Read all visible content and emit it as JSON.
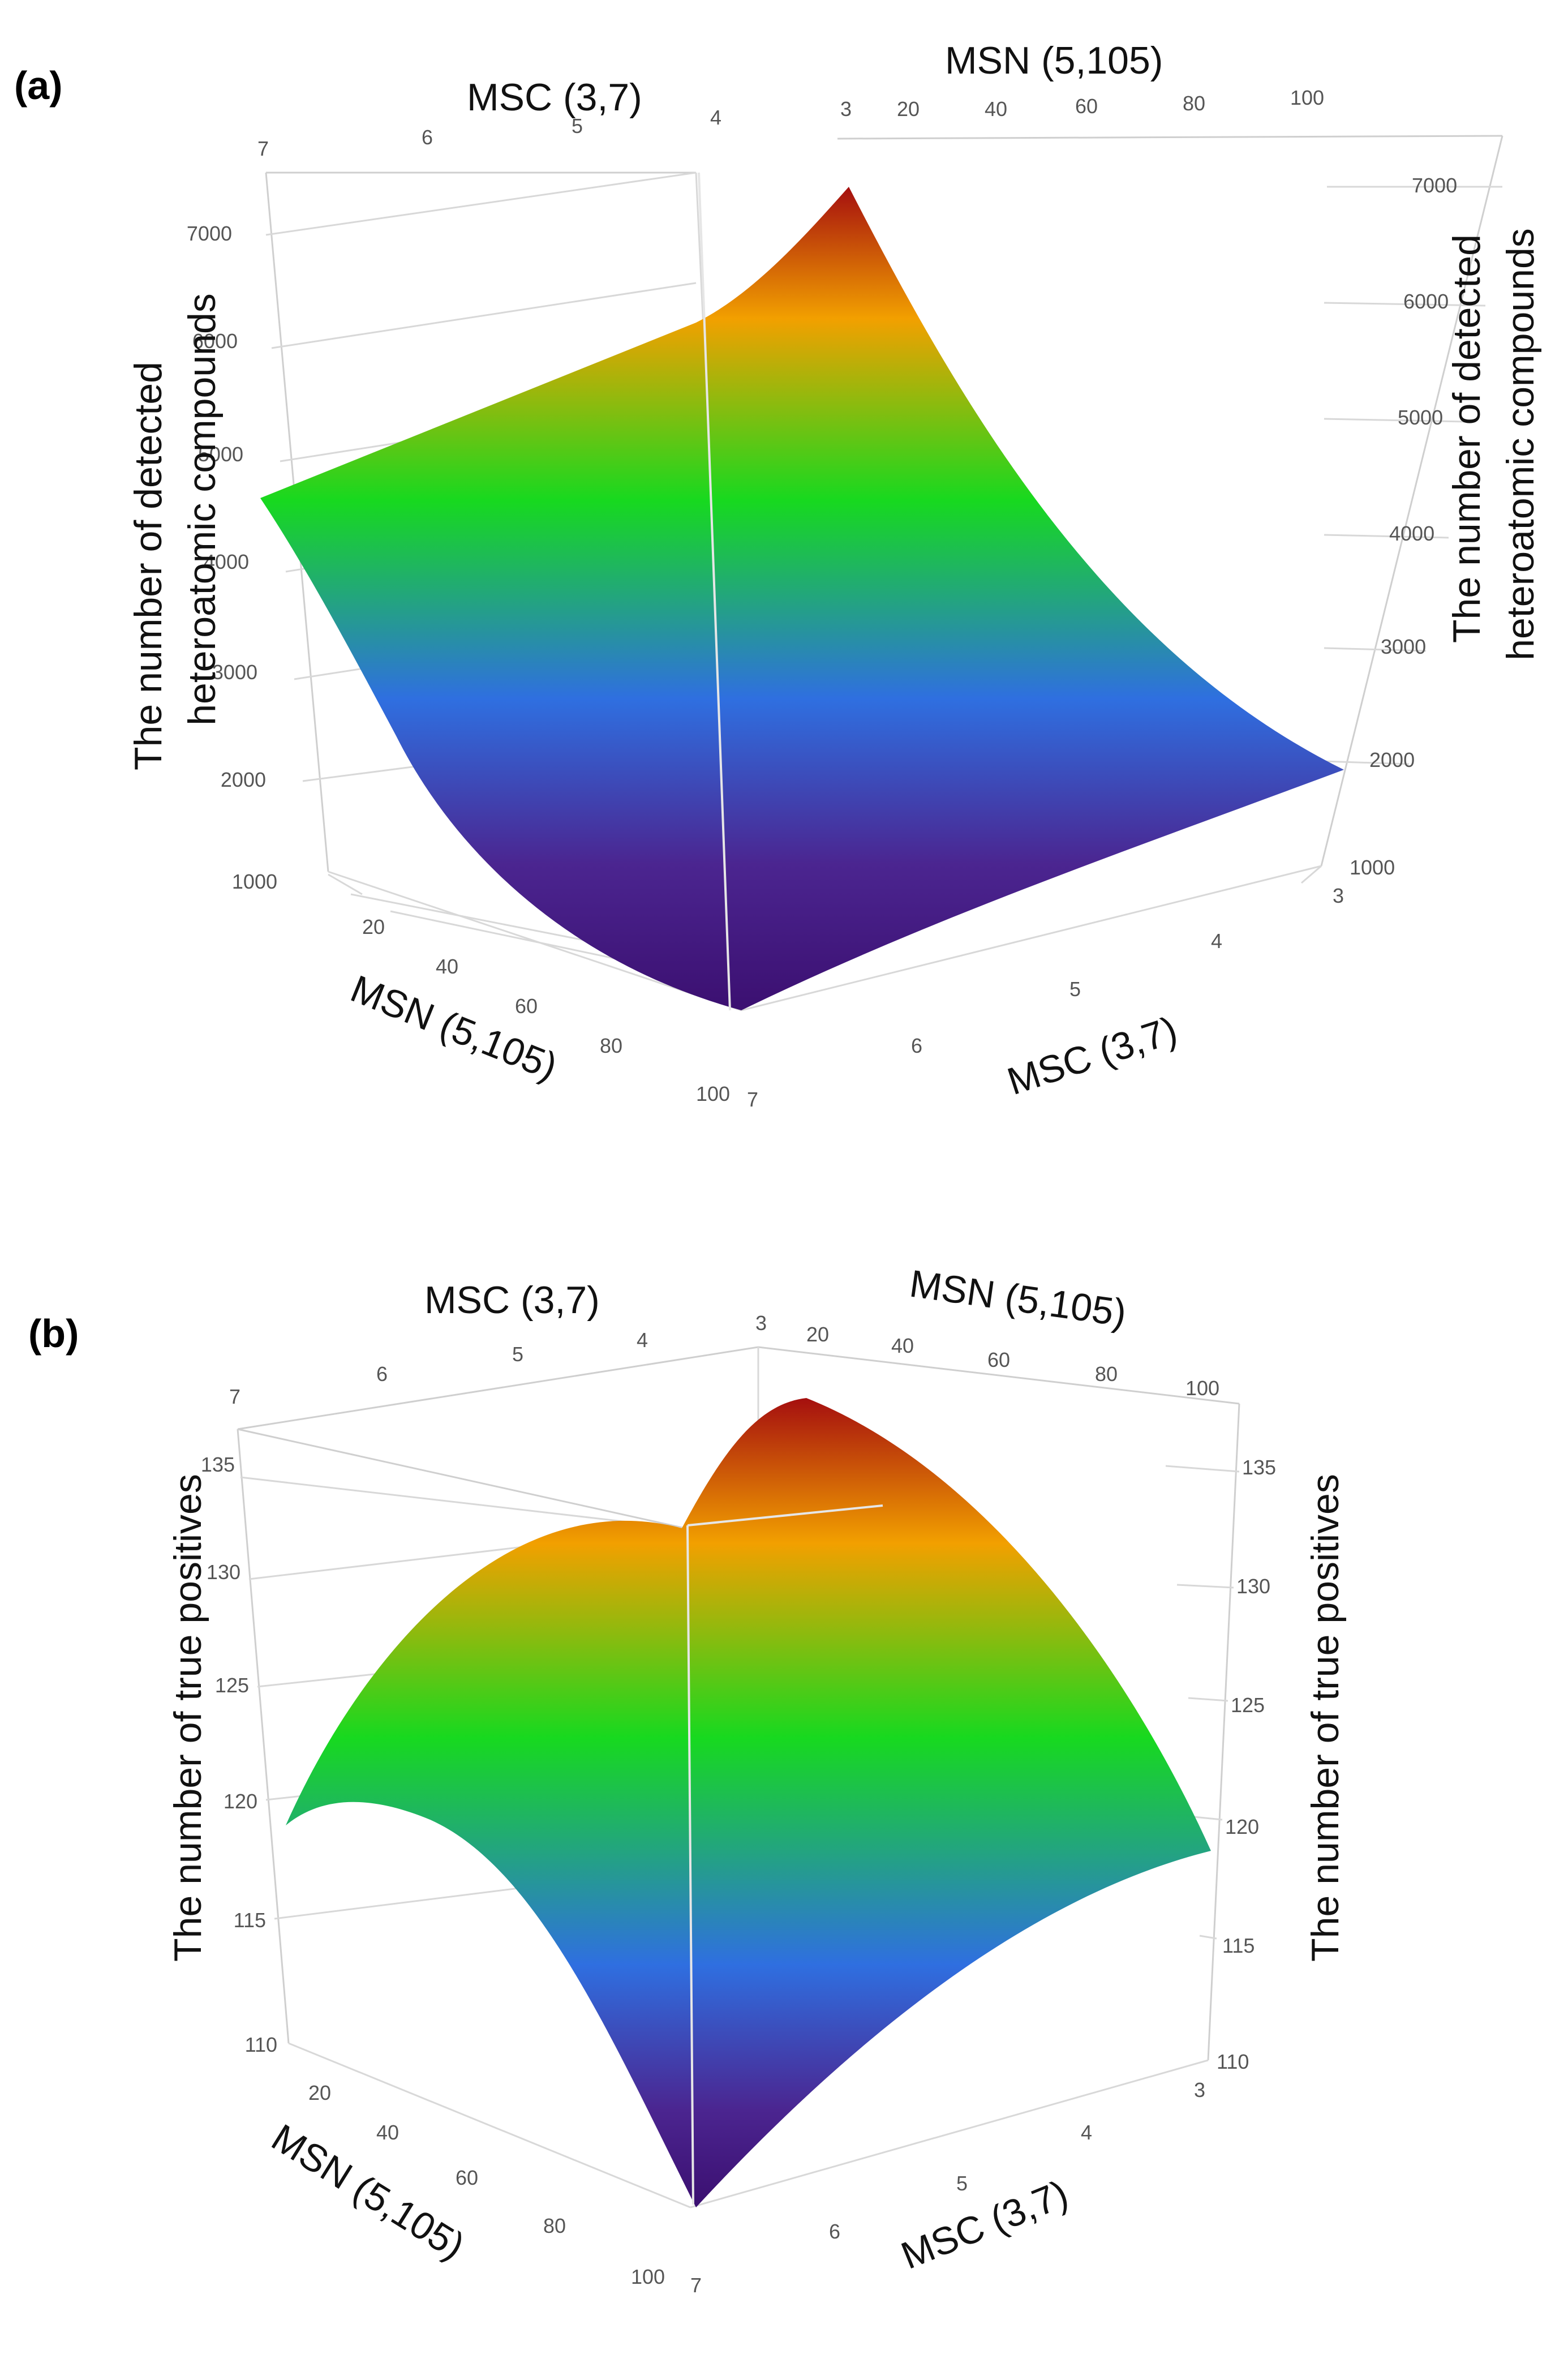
{
  "figure": {
    "panels": [
      {
        "label": "(a)",
        "top_axis_labels": {
          "msc": "MSC (3,7)",
          "msn": "MSN (5,105)"
        },
        "left_axis_label_line1": "The number of detected",
        "left_axis_label_line2": "heteroatomic compounds",
        "right_axis_label_line1": "The number of detected",
        "right_axis_label_line2": "heteroatomic compounds",
        "bottom_msn_label": "MSN (5,105)",
        "bottom_msc_label": "MSC (3,7)",
        "z_ticks_left": [
          "1000",
          "2000",
          "3000",
          "4000",
          "5000",
          "6000",
          "7000"
        ],
        "z_ticks_right": [
          "1000",
          "2000",
          "3000",
          "4000",
          "5000",
          "6000",
          "7000"
        ],
        "msn_ticks": [
          "20",
          "40",
          "60",
          "80",
          "100"
        ],
        "msc_ticks": [
          "3",
          "4",
          "5",
          "6",
          "7"
        ],
        "top_msc_ticks": [
          "7",
          "6",
          "5",
          "4",
          "3"
        ],
        "top_msn_ticks": [
          "20",
          "40",
          "60",
          "80",
          "100"
        ]
      },
      {
        "label": "(b)",
        "top_axis_labels": {
          "msc": "MSC (3,7)",
          "msn": "MSN (5,105)"
        },
        "left_axis_label": "The number of true positives",
        "right_axis_label": "The number of true positives",
        "bottom_msn_label": "MSN (5,105)",
        "bottom_msc_label": "MSC (3,7)",
        "z_ticks_left": [
          "110",
          "115",
          "120",
          "125",
          "130",
          "135"
        ],
        "z_ticks_right": [
          "110",
          "115",
          "120",
          "125",
          "130",
          "135"
        ],
        "msn_ticks": [
          "20",
          "40",
          "60",
          "80",
          "100"
        ],
        "msc_ticks": [
          "3",
          "4",
          "5",
          "6",
          "7"
        ],
        "top_msc_ticks": [
          "7",
          "6",
          "5",
          "4",
          "3"
        ],
        "top_msn_ticks": [
          "20",
          "40",
          "60",
          "80",
          "100"
        ]
      }
    ]
  },
  "chart_data": [
    {
      "type": "surface",
      "title": "(a)",
      "x_label": "MSN (5,105)",
      "y_label": "MSC (3,7)",
      "z_label": "The number of detected heteroatomic compounds",
      "x_range": [
        5,
        105
      ],
      "y_range": [
        3,
        7
      ],
      "zlim": [
        1000,
        7500
      ],
      "corner_values": [
        {
          "msn": 5,
          "msc": 7,
          "z": 4500
        },
        {
          "msn": 5,
          "msc": 3,
          "z": 7000
        },
        {
          "msn": 105,
          "msc": 3,
          "z": 2000
        },
        {
          "msn": 105,
          "msc": 7,
          "z": 1000
        }
      ],
      "colorscale": [
        "#3b0f70",
        "#2f6fe0",
        "#17d91f",
        "#f2a000",
        "#a50f0f"
      ]
    },
    {
      "type": "surface",
      "title": "(b)",
      "x_label": "MSN (5,105)",
      "y_label": "MSC (3,7)",
      "z_label": "The number of true positives",
      "x_range": [
        5,
        105
      ],
      "y_range": [
        3,
        7
      ],
      "zlim": [
        110,
        136
      ],
      "corner_values": [
        {
          "msn": 5,
          "msc": 7,
          "z": 118.5
        },
        {
          "msn": 5,
          "msc": 3,
          "z": 135
        },
        {
          "msn": 105,
          "msc": 3,
          "z": 118.5
        },
        {
          "msn": 105,
          "msc": 7,
          "z": 110
        }
      ],
      "peak": {
        "msn": 35,
        "msc": 3.6,
        "z": 135.5
      },
      "colorscale": [
        "#3b0f70",
        "#2f6fe0",
        "#17d91f",
        "#f2a000",
        "#a50f0f"
      ]
    }
  ]
}
